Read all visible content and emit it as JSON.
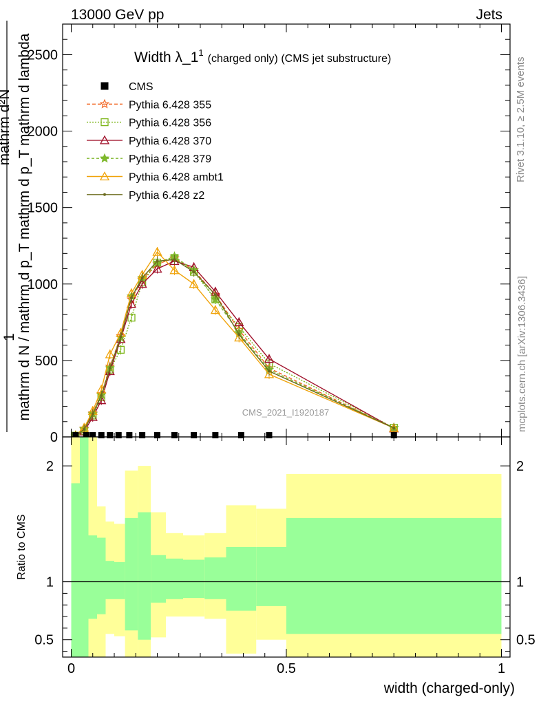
{
  "header": {
    "left": "13000 GeV pp",
    "right": "Jets"
  },
  "side_labels": {
    "rivet": "Rivet 3.1.10, ≥ 2.5M events",
    "mcplots": "mcplots.cern.ch [arXiv:1306.3436]"
  },
  "chart_data": {
    "type": "line",
    "title_main": "Width λ_1",
    "title_sup": "1",
    "title_tail": "(charged only) (CMS jet substructure)",
    "watermark": "CMS_2021_I1920187",
    "xlabel": "width (charged-only)",
    "ylabel_top": "1",
    "ylabel_bottom": "mathrm d N / mathrm d p_T mathrm d p_T mathrm d lambda",
    "ylabel_numerator": "mathrm d²N",
    "ratio_ylabel": "Ratio to CMS",
    "xlim": [
      -0.02,
      1.02
    ],
    "ylim": [
      0,
      2700
    ],
    "ratio_ylim": [
      0.35,
      2.25
    ],
    "x_ticks": [
      "0",
      "0.5",
      "1"
    ],
    "y_ticks": [
      "0",
      "500",
      "1000",
      "1500",
      "2000",
      "2500"
    ],
    "ratio_ticks": [
      "0.5",
      "1",
      "2"
    ],
    "legend_placement": "top-left",
    "data": {
      "name": "CMS",
      "x": [
        0.01,
        0.035,
        0.05,
        0.07,
        0.09,
        0.11,
        0.135,
        0.165,
        0.2,
        0.24,
        0.285,
        0.335,
        0.395,
        0.46,
        0.75
      ],
      "y": [
        2,
        2,
        2,
        2,
        2,
        2,
        2,
        2,
        2,
        2,
        2,
        2,
        2,
        2,
        2
      ]
    },
    "x": [
      0.01,
      0.03,
      0.05,
      0.07,
      0.09,
      0.115,
      0.14,
      0.165,
      0.2,
      0.24,
      0.285,
      0.335,
      0.39,
      0.46,
      0.75
    ],
    "series": [
      {
        "name": "Pythia 6.428 355",
        "color": "#f26522",
        "marker": "star-open",
        "dash": "5,3",
        "values": [
          8,
          55,
          155,
          280,
          460,
          660,
          900,
          1030,
          1130,
          1170,
          1090,
          930,
          700,
          450,
          60
        ]
      },
      {
        "name": "Pythia 6.428 356",
        "color": "#7cb518",
        "marker": "square-open",
        "dash": "2,2",
        "values": [
          8,
          40,
          140,
          260,
          440,
          570,
          780,
          1010,
          1140,
          1170,
          1080,
          900,
          720,
          480,
          60
        ]
      },
      {
        "name": "Pythia 6.428 370",
        "color": "#a0102a",
        "marker": "triangle-open",
        "dash": "",
        "values": [
          5,
          35,
          130,
          240,
          430,
          640,
          870,
          1000,
          1100,
          1150,
          1110,
          950,
          750,
          510,
          55
        ]
      },
      {
        "name": "Pythia 6.428 379",
        "color": "#7fb82d",
        "marker": "star-filled",
        "dash": "4,3",
        "values": [
          8,
          50,
          150,
          275,
          450,
          650,
          920,
          1040,
          1140,
          1180,
          1090,
          900,
          680,
          440,
          60
        ]
      },
      {
        "name": "Pythia 6.428 ambt1",
        "color": "#f0a30a",
        "marker": "triangle-open",
        "dash": "",
        "values": [
          10,
          60,
          170,
          310,
          540,
          680,
          940,
          1060,
          1210,
          1090,
          1000,
          830,
          650,
          410,
          58
        ]
      },
      {
        "name": "Pythia 6.428 z2",
        "color": "#6b6b1e",
        "marker": "dot",
        "dash": "",
        "values": [
          8,
          50,
          150,
          270,
          450,
          655,
          910,
          1040,
          1150,
          1160,
          1080,
          930,
          670,
          430,
          58
        ]
      }
    ],
    "ratio_bands": [
      {
        "x0": 0.0,
        "x1": 0.02,
        "g": [
          0.35,
          1.85
        ],
        "y": [
          0.35,
          2.25
        ]
      },
      {
        "x0": 0.02,
        "x1": 0.04,
        "g": [
          0.35,
          2.25
        ],
        "y": [
          0.35,
          2.25
        ]
      },
      {
        "x0": 0.04,
        "x1": 0.06,
        "g": [
          0.68,
          1.4
        ],
        "y": [
          0.35,
          2.25
        ]
      },
      {
        "x0": 0.06,
        "x1": 0.08,
        "g": [
          0.72,
          1.38
        ],
        "y": [
          0.35,
          1.65
        ]
      },
      {
        "x0": 0.08,
        "x1": 0.1,
        "g": [
          0.85,
          1.18
        ],
        "y": [
          0.55,
          1.52
        ]
      },
      {
        "x0": 0.1,
        "x1": 0.125,
        "g": [
          0.85,
          1.17
        ],
        "y": [
          0.53,
          1.5
        ]
      },
      {
        "x0": 0.125,
        "x1": 0.155,
        "g": [
          0.58,
          1.55
        ],
        "y": [
          0.35,
          1.96
        ]
      },
      {
        "x0": 0.155,
        "x1": 0.185,
        "g": [
          0.5,
          1.6
        ],
        "y": [
          0.35,
          2.0
        ]
      },
      {
        "x0": 0.185,
        "x1": 0.22,
        "g": [
          0.82,
          1.23
        ],
        "y": [
          0.52,
          1.6
        ]
      },
      {
        "x0": 0.22,
        "x1": 0.26,
        "g": [
          0.85,
          1.2
        ],
        "y": [
          0.7,
          1.42
        ]
      },
      {
        "x0": 0.26,
        "x1": 0.31,
        "g": [
          0.86,
          1.19
        ],
        "y": [
          0.7,
          1.4
        ]
      },
      {
        "x0": 0.31,
        "x1": 0.36,
        "g": [
          0.85,
          1.21
        ],
        "y": [
          0.68,
          1.42
        ]
      },
      {
        "x0": 0.36,
        "x1": 0.43,
        "g": [
          0.75,
          1.3
        ],
        "y": [
          0.38,
          1.66
        ]
      },
      {
        "x0": 0.43,
        "x1": 0.5,
        "g": [
          0.79,
          1.3
        ],
        "y": [
          0.5,
          1.63
        ]
      },
      {
        "x0": 0.5,
        "x1": 1.0,
        "g": [
          0.55,
          1.55
        ],
        "y": [
          0.35,
          1.93
        ]
      }
    ]
  }
}
